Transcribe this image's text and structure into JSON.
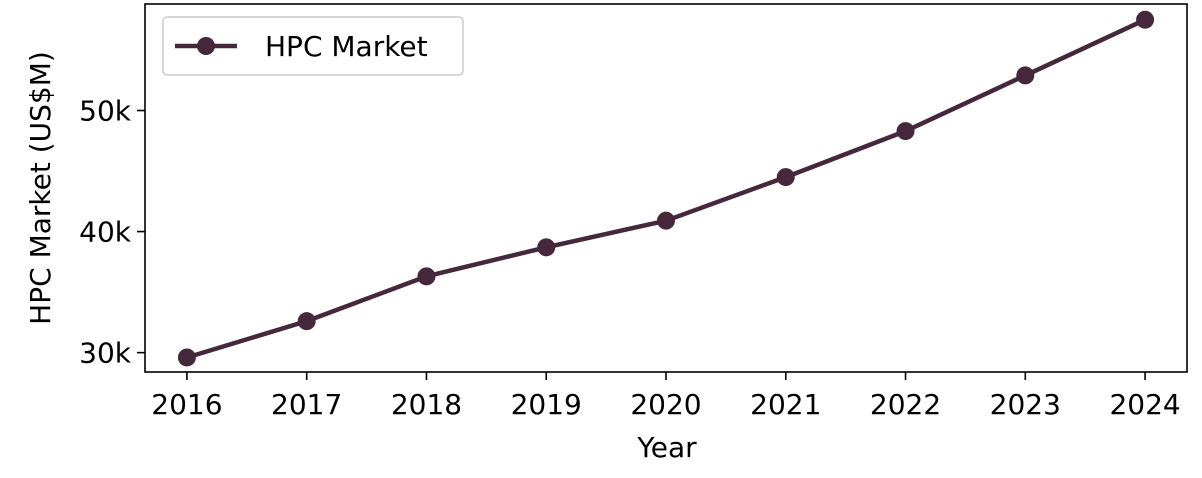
{
  "chart_data": {
    "type": "line",
    "title": "",
    "xlabel": "Year",
    "ylabel": "HPC Market (US$M)",
    "x": [
      2016,
      2017,
      2018,
      2019,
      2020,
      2021,
      2022,
      2023,
      2024
    ],
    "series": [
      {
        "name": "HPC Market",
        "values": [
          29600,
          32600,
          36300,
          38700,
          40900,
          44500,
          48300,
          52900,
          57500
        ],
        "color": "#45283c",
        "marker": "circle"
      }
    ],
    "xticks": [
      "2016",
      "2017",
      "2018",
      "2019",
      "2020",
      "2021",
      "2022",
      "2023",
      "2024"
    ],
    "yticks": [
      {
        "value": 30000,
        "label": "30k"
      },
      {
        "value": 40000,
        "label": "40k"
      },
      {
        "value": 50000,
        "label": "50k"
      }
    ],
    "xlim": [
      2015.65,
      2024.35
    ],
    "ylim": [
      28400,
      58800
    ],
    "grid": false,
    "legend": "top-left"
  }
}
